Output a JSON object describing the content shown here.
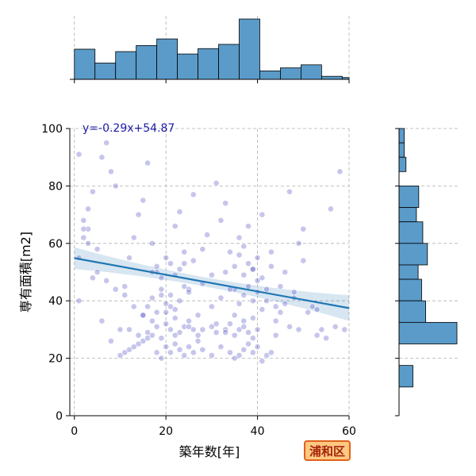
{
  "chart_data": {
    "type": "scatter",
    "xlabel": "築年数[年]",
    "ylabel": "専有面積[m2]",
    "xlim": [
      -1,
      60
    ],
    "ylim": [
      0,
      100
    ],
    "xticks": [
      0,
      20,
      40,
      60
    ],
    "yticks": [
      0,
      20,
      40,
      60,
      80,
      100
    ],
    "grid": true,
    "annotation": "y=-0.29x+54.87",
    "badge": "浦和区",
    "regression": {
      "slope": -0.29,
      "intercept": 54.87
    },
    "colors": {
      "points": "#3333bb",
      "line": "#1f77b4",
      "band": "#1f77b4",
      "bars": "#5a9bc9",
      "annotation": "#1a1aa6",
      "badge_border": "#e0621a",
      "badge_fill": "#ffc882"
    },
    "top_histogram": {
      "bins": [
        [
          0,
          4.5
        ],
        [
          4.5,
          9
        ],
        [
          9,
          13.5
        ],
        [
          13.5,
          18
        ],
        [
          18,
          22.5
        ],
        [
          22.5,
          27
        ],
        [
          27,
          31.5
        ],
        [
          31.5,
          36
        ],
        [
          36,
          40.5
        ],
        [
          40.5,
          45
        ],
        [
          45,
          49.5
        ],
        [
          49.5,
          54
        ],
        [
          54,
          58.5
        ],
        [
          58.5,
          60
        ]
      ],
      "counts": [
        50,
        27,
        46,
        56,
        67,
        42,
        51,
        58,
        100,
        14,
        19,
        24,
        5,
        3
      ]
    },
    "right_histogram": {
      "bins": [
        [
          95,
          100
        ],
        [
          90,
          95
        ],
        [
          85,
          90
        ],
        [
          80,
          85
        ],
        [
          72.5,
          80
        ],
        [
          67.5,
          72.5
        ],
        [
          60,
          67.5
        ],
        [
          52.5,
          60
        ],
        [
          47.5,
          52.5
        ],
        [
          40,
          47.5
        ],
        [
          32.5,
          40
        ],
        [
          25,
          32.5
        ],
        [
          17.5,
          25
        ],
        [
          10,
          17.5
        ]
      ],
      "counts": [
        9,
        9,
        12,
        0,
        34,
        30,
        41,
        49,
        33,
        39,
        46,
        100,
        0,
        24
      ]
    },
    "points": {
      "x": [
        1,
        2,
        3,
        4,
        6,
        7,
        8,
        9,
        2,
        3,
        5,
        1,
        4,
        6,
        8,
        10,
        11,
        12,
        13,
        14,
        15,
        16,
        17,
        18,
        19,
        21,
        22,
        23,
        24,
        25,
        26,
        27,
        28,
        29,
        30,
        31,
        32,
        33,
        34,
        35,
        36,
        37,
        38,
        39,
        40,
        41,
        42,
        43,
        44,
        45,
        46,
        47,
        48,
        49,
        50,
        51,
        52,
        53,
        54,
        55,
        56,
        58,
        59,
        10,
        11,
        12,
        13,
        14,
        15,
        16,
        17,
        18,
        19,
        20,
        21,
        22,
        23,
        24,
        25,
        26,
        27,
        28,
        30,
        32,
        34,
        35,
        36,
        37,
        38,
        39,
        40,
        41,
        42,
        43,
        12,
        14,
        16,
        18,
        19,
        20,
        21,
        22,
        23,
        24,
        25,
        26,
        27,
        30,
        31,
        33,
        34,
        35,
        36,
        37,
        38,
        39,
        40,
        44,
        47,
        15,
        16,
        17,
        18,
        19,
        20,
        21,
        22,
        23,
        24,
        25,
        28,
        30,
        32,
        34,
        36,
        37,
        38,
        39,
        40,
        41,
        42,
        45,
        48,
        17,
        18,
        19,
        20,
        21,
        22,
        23,
        24,
        26,
        33,
        35,
        36,
        37,
        38,
        39,
        40,
        41,
        43,
        46,
        50,
        1,
        2,
        3,
        5,
        7,
        9,
        11,
        13,
        15,
        17,
        20,
        22,
        25,
        28,
        31,
        33,
        35,
        37,
        39,
        44,
        49,
        53,
        57
      ],
      "y": [
        55,
        62,
        72,
        78,
        90,
        95,
        85,
        80,
        68,
        65,
        58,
        40,
        48,
        33,
        26,
        30,
        45,
        55,
        62,
        70,
        75,
        88,
        60,
        50,
        42,
        38,
        66,
        71,
        53,
        44,
        77,
        35,
        58,
        63,
        49,
        81,
        68,
        74,
        57,
        44,
        62,
        59,
        66,
        51,
        47,
        70,
        40,
        57,
        33,
        45,
        39,
        78,
        43,
        60,
        65,
        36,
        38,
        28,
        30,
        27,
        72,
        85,
        30,
        21,
        22,
        23,
        24,
        25,
        26,
        27,
        28,
        22,
        20,
        24,
        22,
        25,
        23,
        21,
        24,
        22,
        26,
        23,
        21,
        24,
        22,
        20,
        21,
        23,
        25,
        22,
        24,
        19,
        21,
        22,
        30,
        28,
        29,
        31,
        27,
        32,
        30,
        28,
        29,
        31,
        33,
        30,
        28,
        31,
        29,
        30,
        32,
        28,
        30,
        31,
        29,
        27,
        30,
        28,
        31,
        35,
        38,
        41,
        36,
        44,
        39,
        42,
        37,
        40,
        45,
        43,
        46,
        38,
        41,
        44,
        39,
        42,
        45,
        40,
        43,
        37,
        44,
        36,
        41,
        50,
        52,
        48,
        55,
        53,
        49,
        51,
        57,
        54,
        50,
        52,
        56,
        49,
        53,
        51,
        55,
        48,
        52,
        50,
        54,
        91,
        65,
        60,
        50,
        47,
        44,
        42,
        38,
        35,
        33,
        36,
        34,
        31,
        30,
        32,
        29,
        35,
        33,
        34,
        38,
        30,
        37,
        31
      ]
    }
  }
}
